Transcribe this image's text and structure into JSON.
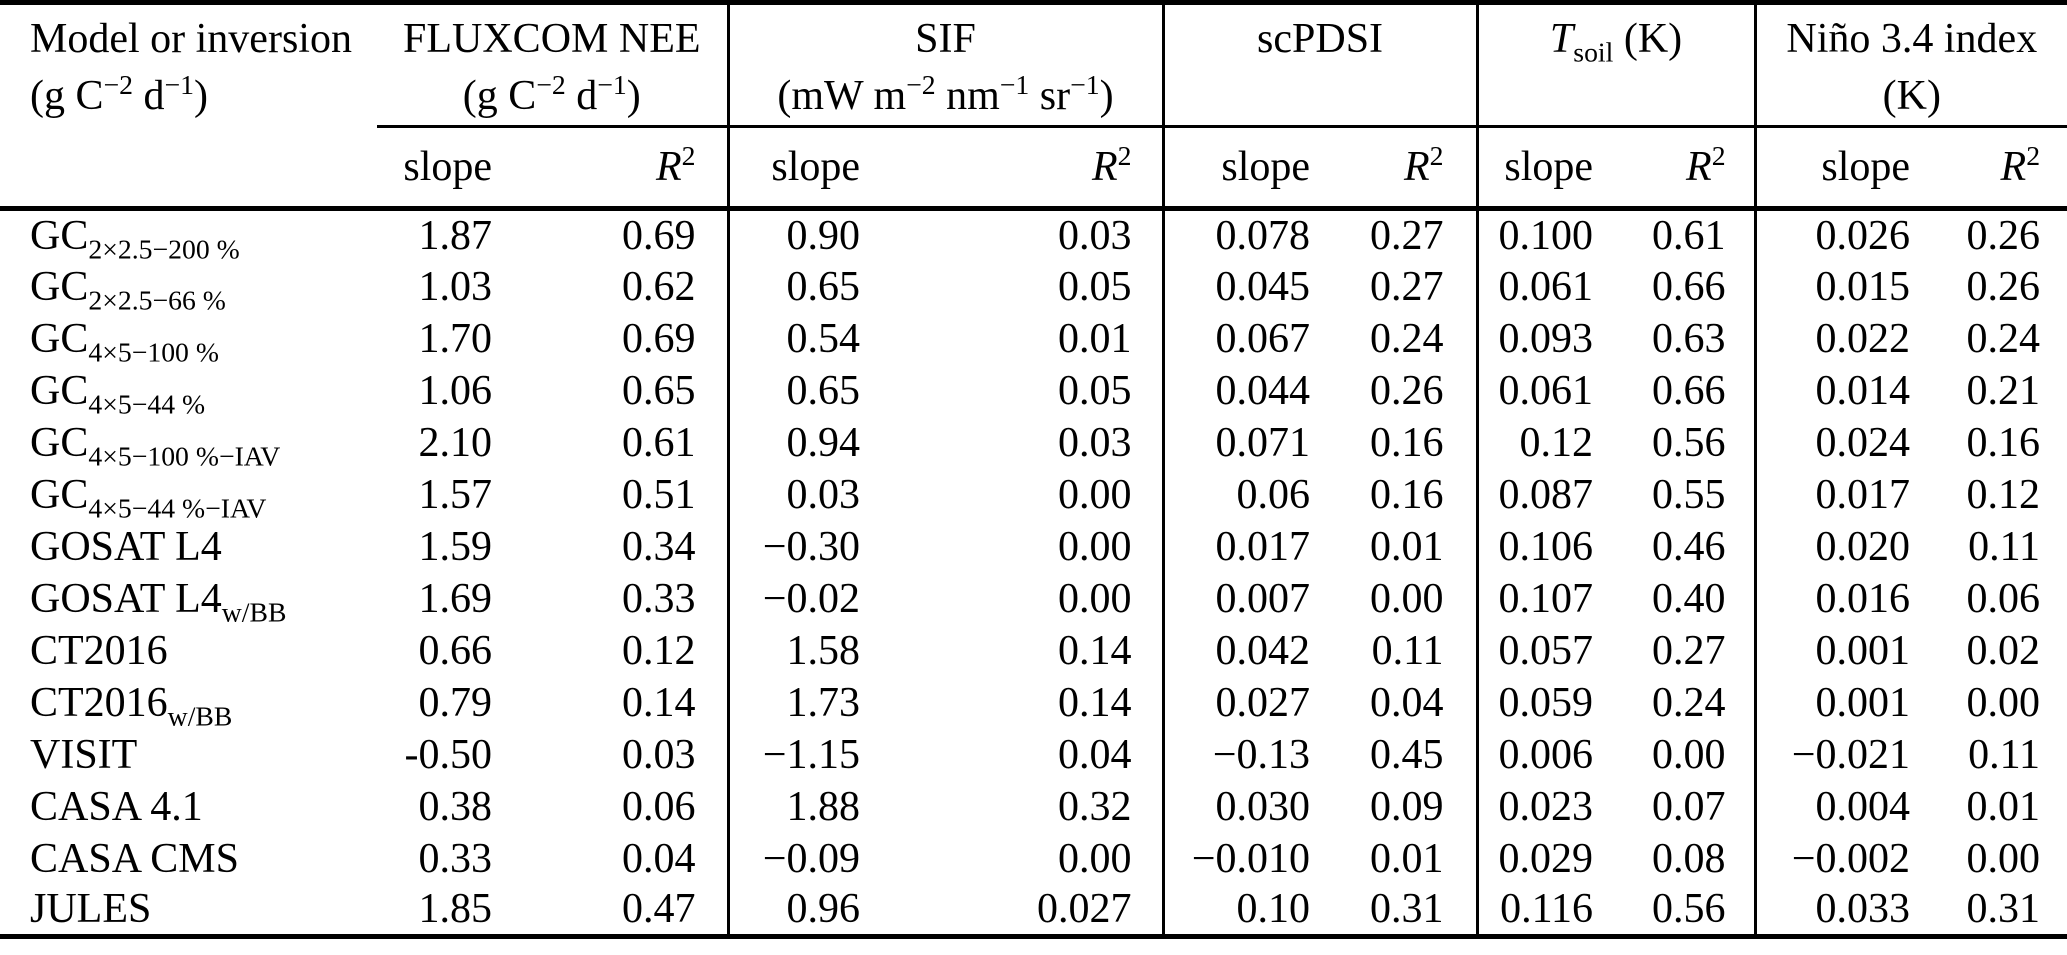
{
  "colors": {
    "background": "#ffffff",
    "text": "#000000",
    "rule": "#000000"
  },
  "table": {
    "header": {
      "model": {
        "title": "Model or inversion",
        "unit": [
          [
            "t",
            "(g C"
          ],
          [
            "sup",
            "−2"
          ],
          [
            "t",
            " d"
          ],
          [
            "sup",
            "−1"
          ],
          [
            "t",
            ")"
          ]
        ]
      },
      "groups": [
        {
          "name": [
            [
              "t",
              "FLUXCOM NEE"
            ]
          ],
          "unit": [
            [
              "t",
              "(g C"
            ],
            [
              "sup",
              "−2"
            ],
            [
              "t",
              " d"
            ],
            [
              "sup",
              "−1"
            ],
            [
              "t",
              ")"
            ]
          ]
        },
        {
          "name": [
            [
              "t",
              "SIF"
            ]
          ],
          "unit": [
            [
              "t",
              "(mW m"
            ],
            [
              "sup",
              "−2"
            ],
            [
              "t",
              " nm"
            ],
            [
              "sup",
              "−1"
            ],
            [
              "t",
              " sr"
            ],
            [
              "sup",
              "−1"
            ],
            [
              "t",
              ")"
            ]
          ]
        },
        {
          "name": [
            [
              "t",
              "scPDSI"
            ]
          ],
          "unit": []
        },
        {
          "name": [
            [
              "i",
              "T"
            ],
            [
              "sub",
              "soil"
            ],
            [
              "t",
              " (K)"
            ]
          ],
          "unit": []
        },
        {
          "name": [
            [
              "t",
              "Niño 3.4 index"
            ]
          ],
          "unit": [
            [
              "t",
              "(K)"
            ]
          ]
        }
      ],
      "sub": {
        "slope_label": "slope",
        "r2": [
          [
            "i",
            "R"
          ],
          [
            "sup",
            "2"
          ]
        ]
      }
    },
    "rows": [
      {
        "label": [
          [
            "t",
            "GC"
          ],
          [
            "sub",
            "2×2.5−200 %"
          ]
        ],
        "values": [
          "1.87",
          "0.69",
          "0.90",
          "0.03",
          "0.078",
          "0.27",
          "0.100",
          "0.61",
          "0.026",
          "0.26"
        ]
      },
      {
        "label": [
          [
            "t",
            "GC"
          ],
          [
            "sub",
            "2×2.5−66 %"
          ]
        ],
        "values": [
          "1.03",
          "0.62",
          "0.65",
          "0.05",
          "0.045",
          "0.27",
          "0.061",
          "0.66",
          "0.015",
          "0.26"
        ]
      },
      {
        "label": [
          [
            "t",
            "GC"
          ],
          [
            "sub",
            "4×5−100 %"
          ]
        ],
        "values": [
          "1.70",
          "0.69",
          "0.54",
          "0.01",
          "0.067",
          "0.24",
          "0.093",
          "0.63",
          "0.022",
          "0.24"
        ]
      },
      {
        "label": [
          [
            "t",
            "GC"
          ],
          [
            "sub",
            "4×5−44 %"
          ]
        ],
        "values": [
          "1.06",
          "0.65",
          "0.65",
          "0.05",
          "0.044",
          "0.26",
          "0.061",
          "0.66",
          "0.014",
          "0.21"
        ]
      },
      {
        "label": [
          [
            "t",
            "GC"
          ],
          [
            "sub",
            "4×5−100 %−IAV"
          ]
        ],
        "values": [
          "2.10",
          "0.61",
          "0.94",
          "0.03",
          "0.071",
          "0.16",
          "0.12",
          "0.56",
          "0.024",
          "0.16"
        ]
      },
      {
        "label": [
          [
            "t",
            "GC"
          ],
          [
            "sub",
            "4×5−44 %−IAV"
          ]
        ],
        "values": [
          "1.57",
          "0.51",
          "0.03",
          "0.00",
          "0.06",
          "0.16",
          "0.087",
          "0.55",
          "0.017",
          "0.12"
        ]
      },
      {
        "label": [
          [
            "t",
            "GOSAT L4"
          ]
        ],
        "values": [
          "1.59",
          "0.34",
          "−0.30",
          "0.00",
          "0.017",
          "0.01",
          "0.106",
          "0.46",
          "0.020",
          "0.11"
        ]
      },
      {
        "label": [
          [
            "t",
            "GOSAT L4"
          ],
          [
            "sub",
            "w/BB"
          ]
        ],
        "values": [
          "1.69",
          "0.33",
          "−0.02",
          "0.00",
          "0.007",
          "0.00",
          "0.107",
          "0.40",
          "0.016",
          "0.06"
        ]
      },
      {
        "label": [
          [
            "t",
            "CT2016"
          ]
        ],
        "values": [
          "0.66",
          "0.12",
          "1.58",
          "0.14",
          "0.042",
          "0.11",
          "0.057",
          "0.27",
          "0.001",
          "0.02"
        ]
      },
      {
        "label": [
          [
            "t",
            "CT2016"
          ],
          [
            "sub",
            "w/BB"
          ]
        ],
        "values": [
          "0.79",
          "0.14",
          "1.73",
          "0.14",
          "0.027",
          "0.04",
          "0.059",
          "0.24",
          "0.001",
          "0.00"
        ]
      },
      {
        "label": [
          [
            "t",
            "VISIT"
          ]
        ],
        "values": [
          "-0.50",
          "0.03",
          "−1.15",
          "0.04",
          "−0.13",
          "0.45",
          "0.006",
          "0.00",
          "−0.021",
          "0.11"
        ]
      },
      {
        "label": [
          [
            "t",
            "CASA 4.1"
          ]
        ],
        "values": [
          "0.38",
          "0.06",
          "1.88",
          "0.32",
          "0.030",
          "0.09",
          "0.023",
          "0.07",
          "0.004",
          "0.01"
        ]
      },
      {
        "label": [
          [
            "t",
            "CASA CMS"
          ]
        ],
        "values": [
          "0.33",
          "0.04",
          "−0.09",
          "0.00",
          "−0.010",
          "0.01",
          "0.029",
          "0.08",
          "−0.002",
          "0.00"
        ]
      },
      {
        "label": [
          [
            "t",
            "JULES"
          ]
        ],
        "values": [
          "1.85",
          "0.47",
          "0.96",
          "0.027",
          "0.10",
          "0.31",
          "0.116",
          "0.56",
          "0.033",
          "0.31"
        ]
      }
    ]
  }
}
